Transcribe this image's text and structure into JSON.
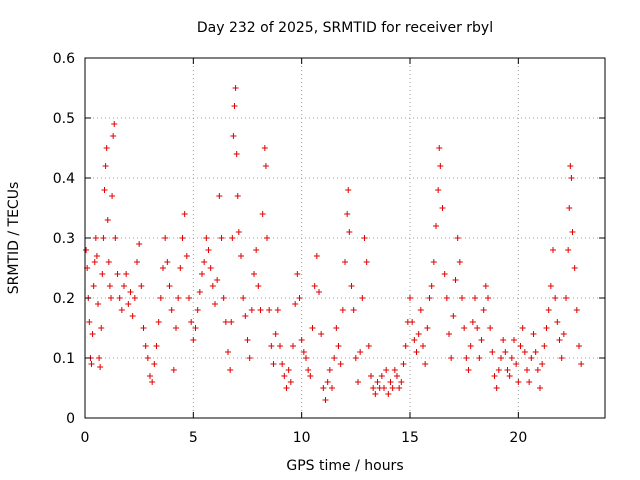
{
  "chart_data": {
    "type": "scatter",
    "title": "Day 232 of 2025, SRMTID for receiver rbyl",
    "xlabel": "GPS time / hours",
    "ylabel": "SRMTID / TECUs",
    "xlim": [
      0,
      24
    ],
    "ylim": [
      0,
      0.6
    ],
    "xticks": [
      0,
      5,
      10,
      15,
      20
    ],
    "xtick_labels": [
      "0",
      "5",
      "10",
      "15",
      "20"
    ],
    "yticks": [
      0,
      0.1,
      0.2,
      0.3,
      0.4,
      0.5,
      0.6
    ],
    "ytick_labels": [
      "0",
      "0.1",
      "0.2",
      "0.3",
      "0.4",
      "0.5",
      "0.6"
    ],
    "grid": true,
    "marker": "+",
    "color": "#e00000",
    "series": [
      {
        "name": "SRMTID",
        "points": [
          [
            0.05,
            0.28
          ],
          [
            0.1,
            0.25
          ],
          [
            0.15,
            0.2
          ],
          [
            0.2,
            0.16
          ],
          [
            0.25,
            0.1
          ],
          [
            0.3,
            0.09
          ],
          [
            0.35,
            0.14
          ],
          [
            0.4,
            0.22
          ],
          [
            0.45,
            0.26
          ],
          [
            0.5,
            0.3
          ],
          [
            0.55,
            0.27
          ],
          [
            0.6,
            0.19
          ],
          [
            0.65,
            0.1
          ],
          [
            0.7,
            0.085
          ],
          [
            0.75,
            0.15
          ],
          [
            0.8,
            0.24
          ],
          [
            0.85,
            0.3
          ],
          [
            0.9,
            0.38
          ],
          [
            0.95,
            0.42
          ],
          [
            1.0,
            0.45
          ],
          [
            1.05,
            0.33
          ],
          [
            1.1,
            0.26
          ],
          [
            1.15,
            0.22
          ],
          [
            1.2,
            0.2
          ],
          [
            1.25,
            0.37
          ],
          [
            1.3,
            0.47
          ],
          [
            1.35,
            0.49
          ],
          [
            1.4,
            0.3
          ],
          [
            1.5,
            0.24
          ],
          [
            1.6,
            0.2
          ],
          [
            1.7,
            0.18
          ],
          [
            1.8,
            0.22
          ],
          [
            1.9,
            0.24
          ],
          [
            2.0,
            0.19
          ],
          [
            2.1,
            0.21
          ],
          [
            2.2,
            0.17
          ],
          [
            2.3,
            0.2
          ],
          [
            2.4,
            0.26
          ],
          [
            2.5,
            0.29
          ],
          [
            2.6,
            0.22
          ],
          [
            2.7,
            0.15
          ],
          [
            2.8,
            0.12
          ],
          [
            2.9,
            0.1
          ],
          [
            3.0,
            0.07
          ],
          [
            3.1,
            0.06
          ],
          [
            3.2,
            0.09
          ],
          [
            3.3,
            0.12
          ],
          [
            3.4,
            0.16
          ],
          [
            3.5,
            0.2
          ],
          [
            3.6,
            0.25
          ],
          [
            3.7,
            0.3
          ],
          [
            3.8,
            0.26
          ],
          [
            3.9,
            0.22
          ],
          [
            4.0,
            0.18
          ],
          [
            4.1,
            0.08
          ],
          [
            4.2,
            0.15
          ],
          [
            4.3,
            0.2
          ],
          [
            4.4,
            0.25
          ],
          [
            4.5,
            0.3
          ],
          [
            4.6,
            0.34
          ],
          [
            4.7,
            0.27
          ],
          [
            4.8,
            0.2
          ],
          [
            4.9,
            0.16
          ],
          [
            5.0,
            0.13
          ],
          [
            5.1,
            0.15
          ],
          [
            5.2,
            0.18
          ],
          [
            5.3,
            0.21
          ],
          [
            5.4,
            0.24
          ],
          [
            5.5,
            0.26
          ],
          [
            5.6,
            0.3
          ],
          [
            5.7,
            0.28
          ],
          [
            5.8,
            0.25
          ],
          [
            5.9,
            0.22
          ],
          [
            6.0,
            0.19
          ],
          [
            6.1,
            0.23
          ],
          [
            6.2,
            0.37
          ],
          [
            6.3,
            0.3
          ],
          [
            6.4,
            0.2
          ],
          [
            6.5,
            0.16
          ],
          [
            6.6,
            0.11
          ],
          [
            6.7,
            0.08
          ],
          [
            6.75,
            0.16
          ],
          [
            6.8,
            0.3
          ],
          [
            6.85,
            0.47
          ],
          [
            6.9,
            0.52
          ],
          [
            6.95,
            0.55
          ],
          [
            7.0,
            0.44
          ],
          [
            7.05,
            0.37
          ],
          [
            7.1,
            0.31
          ],
          [
            7.2,
            0.27
          ],
          [
            7.3,
            0.2
          ],
          [
            7.4,
            0.17
          ],
          [
            7.5,
            0.13
          ],
          [
            7.6,
            0.1
          ],
          [
            7.7,
            0.18
          ],
          [
            7.8,
            0.24
          ],
          [
            7.9,
            0.28
          ],
          [
            8.0,
            0.22
          ],
          [
            8.1,
            0.18
          ],
          [
            8.2,
            0.34
          ],
          [
            8.3,
            0.45
          ],
          [
            8.35,
            0.42
          ],
          [
            8.4,
            0.3
          ],
          [
            8.5,
            0.18
          ],
          [
            8.6,
            0.12
          ],
          [
            8.7,
            0.09
          ],
          [
            8.8,
            0.14
          ],
          [
            8.9,
            0.18
          ],
          [
            9.0,
            0.12
          ],
          [
            9.1,
            0.09
          ],
          [
            9.2,
            0.07
          ],
          [
            9.3,
            0.05
          ],
          [
            9.4,
            0.08
          ],
          [
            9.5,
            0.06
          ],
          [
            9.6,
            0.12
          ],
          [
            9.7,
            0.19
          ],
          [
            9.8,
            0.24
          ],
          [
            9.9,
            0.2
          ],
          [
            10.0,
            0.13
          ],
          [
            10.1,
            0.11
          ],
          [
            10.2,
            0.1
          ],
          [
            10.3,
            0.08
          ],
          [
            10.4,
            0.07
          ],
          [
            10.5,
            0.15
          ],
          [
            10.6,
            0.22
          ],
          [
            10.7,
            0.27
          ],
          [
            10.8,
            0.21
          ],
          [
            10.9,
            0.14
          ],
          [
            11.0,
            0.05
          ],
          [
            11.1,
            0.03
          ],
          [
            11.2,
            0.06
          ],
          [
            11.3,
            0.08
          ],
          [
            11.4,
            0.05
          ],
          [
            11.5,
            0.1
          ],
          [
            11.6,
            0.15
          ],
          [
            11.7,
            0.12
          ],
          [
            11.8,
            0.09
          ],
          [
            11.9,
            0.18
          ],
          [
            12.0,
            0.26
          ],
          [
            12.1,
            0.34
          ],
          [
            12.15,
            0.38
          ],
          [
            12.2,
            0.31
          ],
          [
            12.3,
            0.22
          ],
          [
            12.4,
            0.18
          ],
          [
            12.5,
            0.1
          ],
          [
            12.6,
            0.06
          ],
          [
            12.7,
            0.11
          ],
          [
            12.8,
            0.2
          ],
          [
            12.9,
            0.3
          ],
          [
            13.0,
            0.26
          ],
          [
            13.1,
            0.12
          ],
          [
            13.2,
            0.07
          ],
          [
            13.3,
            0.05
          ],
          [
            13.4,
            0.04
          ],
          [
            13.5,
            0.06
          ],
          [
            13.6,
            0.05
          ],
          [
            13.7,
            0.07
          ],
          [
            13.8,
            0.05
          ],
          [
            13.9,
            0.08
          ],
          [
            14.0,
            0.04
          ],
          [
            14.1,
            0.06
          ],
          [
            14.2,
            0.05
          ],
          [
            14.3,
            0.08
          ],
          [
            14.4,
            0.07
          ],
          [
            14.5,
            0.05
          ],
          [
            14.6,
            0.06
          ],
          [
            14.7,
            0.09
          ],
          [
            14.8,
            0.12
          ],
          [
            14.9,
            0.16
          ],
          [
            15.0,
            0.2
          ],
          [
            15.1,
            0.16
          ],
          [
            15.2,
            0.13
          ],
          [
            15.3,
            0.11
          ],
          [
            15.4,
            0.14
          ],
          [
            15.5,
            0.18
          ],
          [
            15.6,
            0.12
          ],
          [
            15.7,
            0.09
          ],
          [
            15.8,
            0.15
          ],
          [
            15.9,
            0.2
          ],
          [
            16.0,
            0.22
          ],
          [
            16.1,
            0.26
          ],
          [
            16.2,
            0.32
          ],
          [
            16.3,
            0.38
          ],
          [
            16.35,
            0.45
          ],
          [
            16.4,
            0.42
          ],
          [
            16.5,
            0.35
          ],
          [
            16.6,
            0.24
          ],
          [
            16.7,
            0.2
          ],
          [
            16.8,
            0.14
          ],
          [
            16.9,
            0.1
          ],
          [
            17.0,
            0.17
          ],
          [
            17.1,
            0.23
          ],
          [
            17.2,
            0.3
          ],
          [
            17.3,
            0.26
          ],
          [
            17.4,
            0.2
          ],
          [
            17.5,
            0.15
          ],
          [
            17.6,
            0.1
          ],
          [
            17.7,
            0.08
          ],
          [
            17.8,
            0.12
          ],
          [
            17.9,
            0.16
          ],
          [
            18.0,
            0.2
          ],
          [
            18.1,
            0.15
          ],
          [
            18.2,
            0.1
          ],
          [
            18.3,
            0.13
          ],
          [
            18.4,
            0.18
          ],
          [
            18.5,
            0.22
          ],
          [
            18.6,
            0.2
          ],
          [
            18.7,
            0.15
          ],
          [
            18.8,
            0.11
          ],
          [
            18.9,
            0.07
          ],
          [
            19.0,
            0.05
          ],
          [
            19.1,
            0.08
          ],
          [
            19.2,
            0.1
          ],
          [
            19.3,
            0.13
          ],
          [
            19.4,
            0.11
          ],
          [
            19.5,
            0.08
          ],
          [
            19.6,
            0.07
          ],
          [
            19.7,
            0.1
          ],
          [
            19.8,
            0.13
          ],
          [
            19.9,
            0.09
          ],
          [
            20.0,
            0.06
          ],
          [
            20.1,
            0.12
          ],
          [
            20.2,
            0.15
          ],
          [
            20.3,
            0.11
          ],
          [
            20.4,
            0.08
          ],
          [
            20.5,
            0.06
          ],
          [
            20.6,
            0.1
          ],
          [
            20.7,
            0.14
          ],
          [
            20.8,
            0.11
          ],
          [
            20.9,
            0.08
          ],
          [
            21.0,
            0.05
          ],
          [
            21.1,
            0.09
          ],
          [
            21.2,
            0.12
          ],
          [
            21.3,
            0.15
          ],
          [
            21.4,
            0.18
          ],
          [
            21.5,
            0.22
          ],
          [
            21.6,
            0.28
          ],
          [
            21.7,
            0.2
          ],
          [
            21.8,
            0.16
          ],
          [
            21.9,
            0.13
          ],
          [
            22.0,
            0.1
          ],
          [
            22.1,
            0.14
          ],
          [
            22.2,
            0.2
          ],
          [
            22.3,
            0.28
          ],
          [
            22.35,
            0.35
          ],
          [
            22.4,
            0.42
          ],
          [
            22.45,
            0.4
          ],
          [
            22.5,
            0.31
          ],
          [
            22.6,
            0.25
          ],
          [
            22.7,
            0.18
          ],
          [
            22.8,
            0.12
          ],
          [
            22.9,
            0.09
          ]
        ]
      }
    ]
  }
}
